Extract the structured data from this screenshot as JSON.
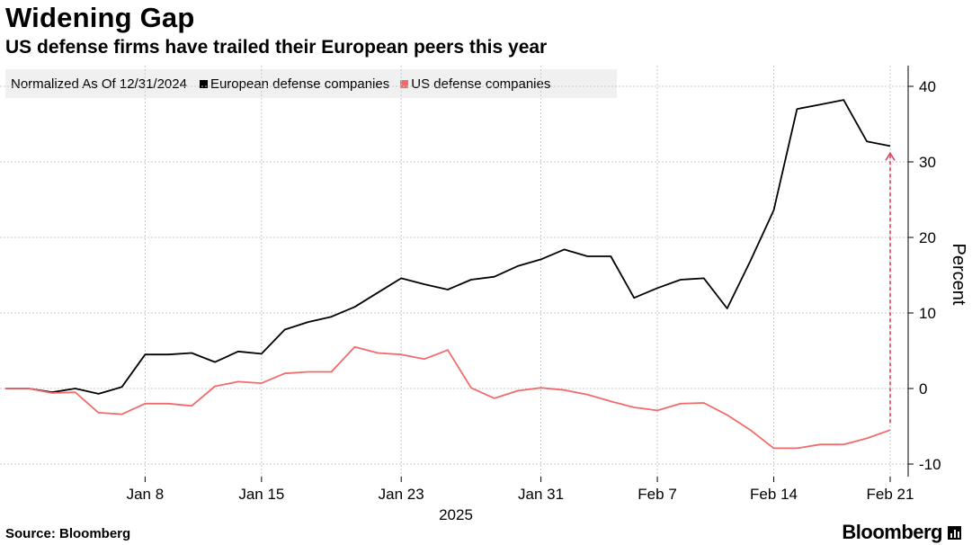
{
  "header": {
    "title": "Widening Gap",
    "subtitle": "US defense firms have trailed their European peers this year"
  },
  "legend": {
    "note": "Normalized As Of 12/31/2024",
    "items": [
      {
        "label": "European defense companies",
        "color": "#000000"
      },
      {
        "label": "US defense companies",
        "color": "#f26b6b"
      }
    ]
  },
  "footer": {
    "source": "Source: Bloomberg",
    "brand": "Bloomberg"
  },
  "chart_data": {
    "type": "line",
    "ylabel": "Percent",
    "xlabel": "2025",
    "ylim": [
      -12,
      43
    ],
    "yticks": [
      -10,
      0,
      10,
      20,
      30,
      40
    ],
    "xticks": [
      "Jan 8",
      "Jan 15",
      "Jan 23",
      "Jan 31",
      "Feb 7",
      "Feb 14",
      "Feb 21"
    ],
    "grid": true,
    "legend_position": "top-left",
    "x": [
      "Dec 31",
      "Jan 1",
      "Jan 2",
      "Jan 3",
      "Jan 6",
      "Jan 7",
      "Jan 8",
      "Jan 9",
      "Jan 10",
      "Jan 13",
      "Jan 14",
      "Jan 15",
      "Jan 16",
      "Jan 17",
      "Jan 20",
      "Jan 21",
      "Jan 22",
      "Jan 23",
      "Jan 24",
      "Jan 27",
      "Jan 28",
      "Jan 29",
      "Jan 30",
      "Jan 31",
      "Feb 3",
      "Feb 4",
      "Feb 5",
      "Feb 6",
      "Feb 7",
      "Feb 10",
      "Feb 11",
      "Feb 12",
      "Feb 13",
      "Feb 14",
      "Feb 17",
      "Feb 18",
      "Feb 19",
      "Feb 20",
      "Feb 21"
    ],
    "series": [
      {
        "name": "European defense companies",
        "color": "#000000",
        "values": [
          0,
          0,
          -0.5,
          0,
          -0.7,
          0.2,
          4.5,
          4.5,
          4.7,
          3.5,
          4.9,
          4.6,
          7.8,
          8.8,
          9.5,
          10.8,
          12.7,
          14.6,
          13.8,
          13.1,
          14.4,
          14.8,
          16.2,
          17.1,
          18.4,
          17.5,
          17.5,
          12.0,
          13.3,
          14.4,
          14.6,
          10.6,
          16.9,
          23.6,
          37.0,
          37.6,
          38.2,
          32.7,
          32.1
        ]
      },
      {
        "name": "US defense companies",
        "color": "#f26b6b",
        "values": [
          0,
          0,
          -0.6,
          -0.5,
          -3.2,
          -3.4,
          -2.0,
          -2.0,
          -2.3,
          0.3,
          0.9,
          0.7,
          2.0,
          2.2,
          2.2,
          5.5,
          4.7,
          4.5,
          3.9,
          5.1,
          0.1,
          -1.3,
          -0.3,
          0.1,
          -0.2,
          -0.8,
          -1.7,
          -2.5,
          -2.9,
          -2.0,
          -1.9,
          -3.5,
          -5.5,
          -7.9,
          -7.9,
          -7.4,
          -7.4,
          -6.6,
          -5.5
        ]
      }
    ],
    "annotation": {
      "type": "arrow",
      "series_from": "US defense companies",
      "series_to": "European defense companies",
      "at": "Feb 21",
      "color": "#e0405a"
    }
  }
}
